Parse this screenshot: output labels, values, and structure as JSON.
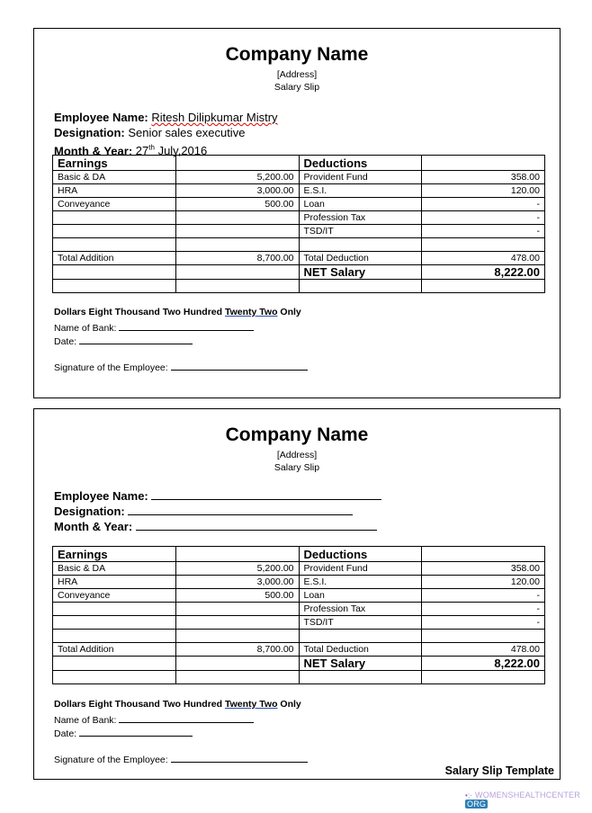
{
  "slips": [
    {
      "company": "Company Name",
      "address": "[Address]",
      "title": "Salary Slip",
      "employee_label": "Employee Name:",
      "employee_name": "Ritesh Dilipkumar Mistry",
      "designation_label": "Designation:",
      "designation": "Senior sales executive",
      "month_label": "Month & Year:",
      "month_day": "27",
      "month_sup": "th",
      "month_rest": "July,2016",
      "filled": true
    },
    {
      "company": "Company Name",
      "address": "[Address]",
      "title": "Salary Slip",
      "employee_label": "Employee Name:",
      "employee_name": "",
      "designation_label": "Designation:",
      "designation": "",
      "month_label": "Month & Year:",
      "month_day": "",
      "month_sup": "",
      "month_rest": "",
      "filled": false
    }
  ],
  "table": {
    "earnings_header": "Earnings",
    "deductions_header": "Deductions",
    "rows": [
      [
        "Basic & DA",
        "5,200.00",
        "Provident Fund",
        "358.00"
      ],
      [
        "HRA",
        "3,000.00",
        "E.S.I.",
        "120.00"
      ],
      [
        "Conveyance",
        "500.00",
        "Loan",
        "-"
      ],
      [
        "",
        "",
        "Profession Tax",
        "-"
      ],
      [
        "",
        "",
        "TSD/IT",
        "-"
      ],
      [
        "",
        "",
        "",
        ""
      ],
      [
        "Total Addition",
        "8,700.00",
        "Total Deduction",
        "478.00"
      ]
    ],
    "net_label": "NET Salary",
    "net_value": "8,222.00"
  },
  "words": {
    "prefix": "Dollars Eight Thousand Two Hundred ",
    "underlined": "Twenty Two",
    "suffix": " Only"
  },
  "bank_label": "Name of Bank:",
  "date_label": "Date:",
  "signature_label": "Signature of the Employee:",
  "footer": "Salary Slip Template",
  "watermark": {
    "text": "WOMENSHEALTHCENTER",
    "org": "ORG"
  }
}
